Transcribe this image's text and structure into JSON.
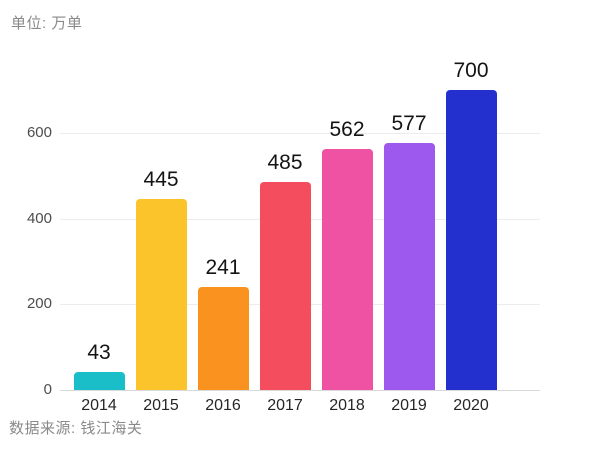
{
  "chart_data": {
    "type": "bar",
    "unit_label": "单位: 万单",
    "source_label": "数据来源: 钱江海关",
    "title": "",
    "xlabel": "",
    "ylabel": "",
    "categories": [
      "2014",
      "2015",
      "2016",
      "2017",
      "2018",
      "2019",
      "2020"
    ],
    "values": [
      43,
      445,
      241,
      485,
      562,
      577,
      700
    ],
    "bar_colors": [
      "#19BEC9",
      "#FBC42A",
      "#F9921F",
      "#F44E5E",
      "#EF52A3",
      "#9D58EE",
      "#2430CE"
    ],
    "yticks": [
      0,
      200,
      400,
      600
    ],
    "ylim": [
      0,
      700
    ],
    "grid": true,
    "legend": "none",
    "value_labels": true
  }
}
